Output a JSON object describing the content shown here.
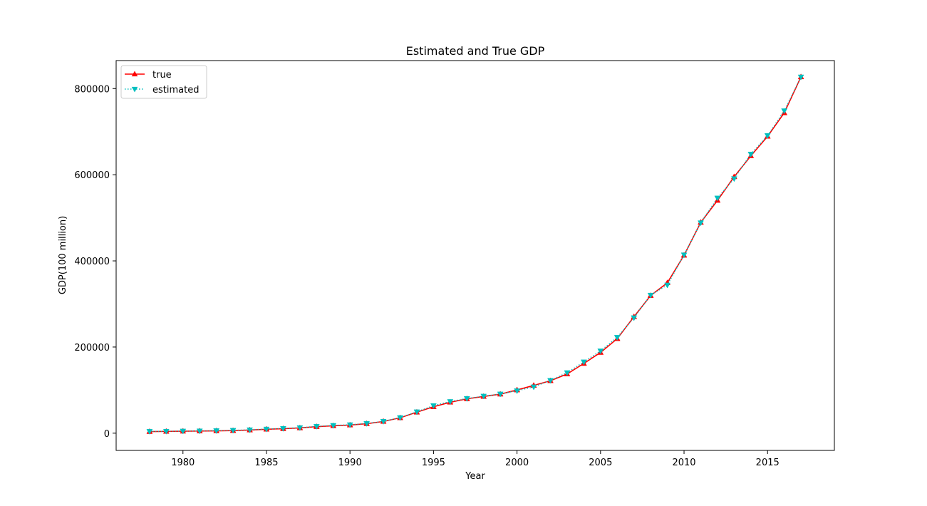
{
  "chart_data": {
    "type": "line",
    "title": "Estimated and True GDP",
    "xlabel": "Year",
    "ylabel": "GDP(100 million)",
    "xlim": [
      1976,
      2019
    ],
    "ylim": [
      -40000,
      865000
    ],
    "xticks": [
      1980,
      1985,
      1990,
      1995,
      2000,
      2005,
      2010,
      2015
    ],
    "yticks": [
      0,
      200000,
      400000,
      600000,
      800000
    ],
    "grid": false,
    "legend_position": "top-left",
    "x": [
      1978,
      1979,
      1980,
      1981,
      1982,
      1983,
      1984,
      1985,
      1986,
      1987,
      1988,
      1989,
      1990,
      1991,
      1992,
      1993,
      1994,
      1995,
      1996,
      1997,
      1998,
      1999,
      2000,
      2001,
      2002,
      2003,
      2004,
      2005,
      2006,
      2007,
      2008,
      2009,
      2010,
      2011,
      2012,
      2013,
      2014,
      2015,
      2016,
      2017
    ],
    "series": [
      {
        "name": "true",
        "color": "#ff0000",
        "line_style": "solid",
        "marker": "triangle-up",
        "values": [
          3679,
          4101,
          4588,
          4936,
          5373,
          6021,
          7279,
          9099,
          10376,
          12175,
          15180,
          17180,
          18873,
          22006,
          27195,
          35673,
          48638,
          61340,
          71814,
          79715,
          85196,
          90564,
          100280,
          110863,
          121717,
          137422,
          161840,
          187319,
          219438,
          270232,
          319516,
          349081,
          413030,
          489301,
          540367,
          595244,
          643974,
          689052,
          743586,
          827122
        ]
      },
      {
        "name": "estimated",
        "color": "#00bfbf",
        "line_style": "dotted",
        "marker": "triangle-down",
        "values": [
          4200,
          4500,
          4900,
          5300,
          5900,
          6600,
          7900,
          9600,
          11100,
          12800,
          15800,
          18000,
          19600,
          22600,
          27500,
          36200,
          49600,
          64000,
          73500,
          80500,
          86000,
          91000,
          98500,
          107500,
          122500,
          140500,
          165500,
          191000,
          222500,
          268000,
          320500,
          344000,
          414000,
          488500,
          546000,
          591000,
          648000,
          691000,
          748500,
          827000
        ]
      }
    ]
  }
}
